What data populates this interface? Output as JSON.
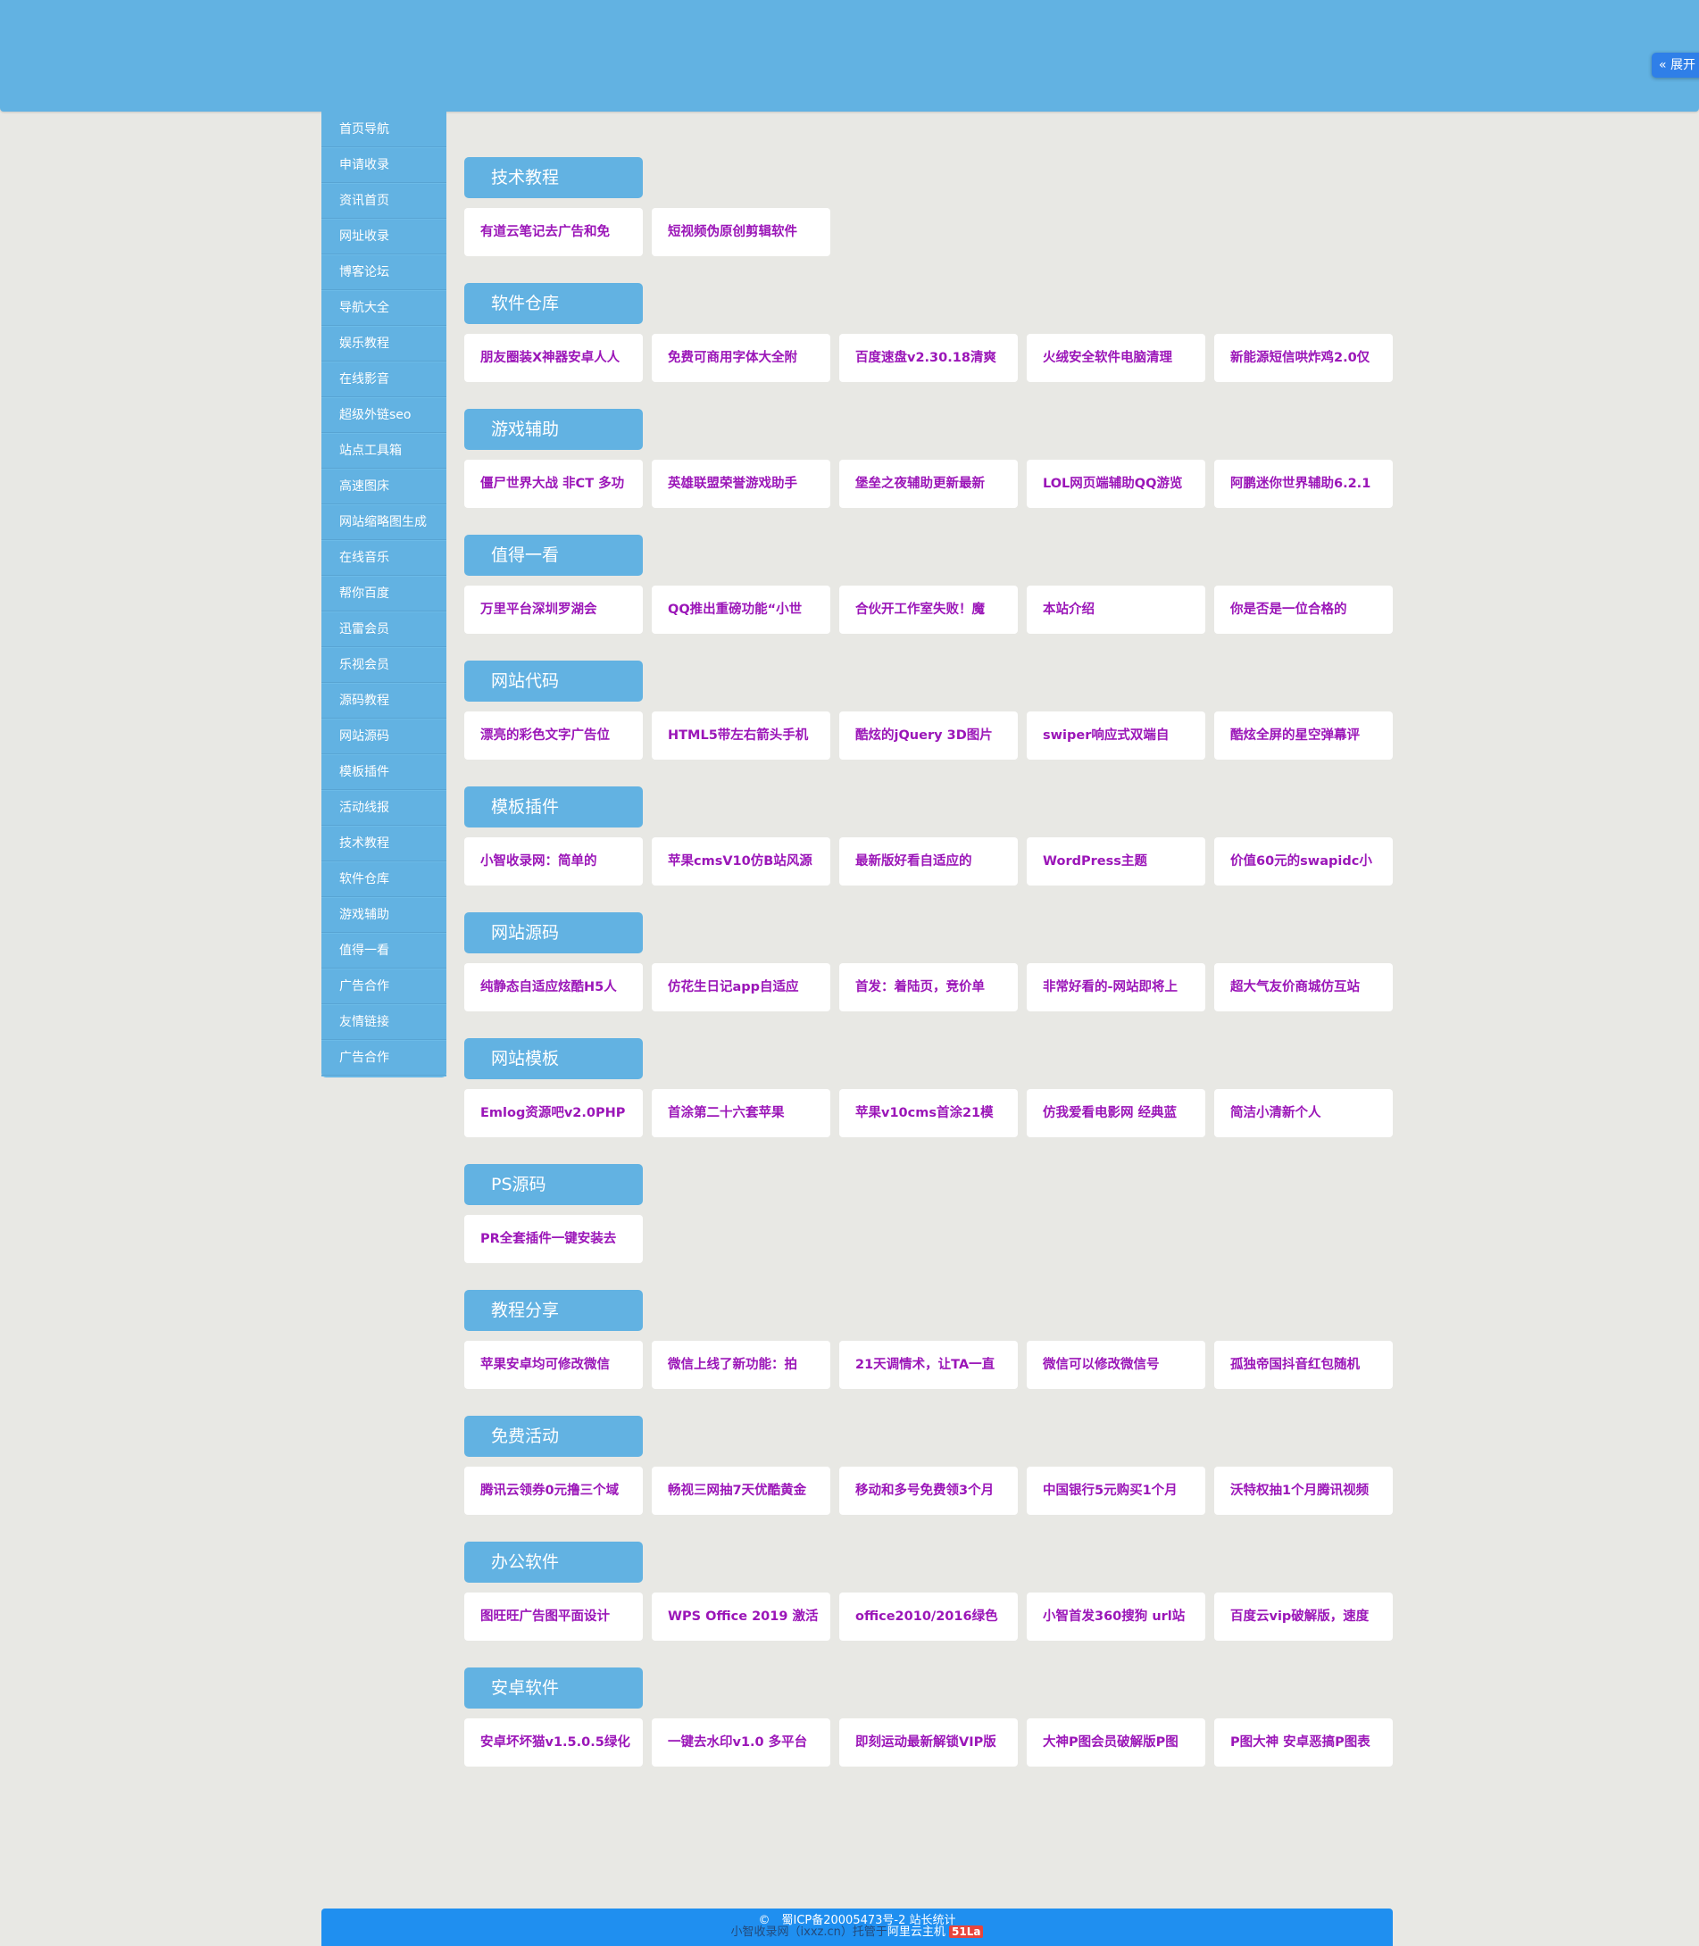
{
  "header": {
    "expand_label": "« 展开"
  },
  "sidebar": {
    "items": [
      "首页导航",
      "申请收录",
      "资讯首页",
      "网址收录",
      "博客论坛",
      "导航大全",
      "娱乐教程",
      "在线影音",
      "超级外链seo",
      "站点工具箱",
      "高速图床",
      "网站缩略图生成",
      "在线音乐",
      "帮你百度",
      "迅雷会员",
      "乐视会员",
      "源码教程",
      "网站源码",
      "模板插件",
      "活动线报",
      "技术教程",
      "软件仓库",
      "游戏辅助",
      "值得一看",
      "广告合作",
      "友情链接",
      "广告合作"
    ]
  },
  "sections": [
    {
      "title": "技术教程",
      "cards": [
        "有道云笔记去广告和免",
        "短视频伪原创剪辑软件"
      ]
    },
    {
      "title": "软件仓库",
      "cards": [
        "朋友圈装X神器安卓人人",
        "免费可商用字体大全附",
        "百度速盘v2.30.18清爽",
        "火绒安全软件电脑清理",
        "新能源短信哄炸鸡2.0仅"
      ]
    },
    {
      "title": "游戏辅助",
      "cards": [
        "僵尸世界大战 非CT 多功",
        "英雄联盟荣誉游戏助手",
        "堡垒之夜辅助更新最新",
        "LOL网页端辅助QQ游览",
        "阿鹏迷你世界辅助6.2.1"
      ]
    },
    {
      "title": "值得一看",
      "cards": [
        "万里平台深圳罗湖会",
        "QQ推出重磅功能“小世",
        "合伙开工作室失败！魔",
        "本站介绍",
        "你是否是一位合格的"
      ]
    },
    {
      "title": "网站代码",
      "cards": [
        "漂亮的彩色文字广告位",
        "HTML5带左右箭头手机",
        "酷炫的jQuery 3D图片",
        "swiper响应式双端自",
        "酷炫全屏的星空弹幕评"
      ]
    },
    {
      "title": "模板插件",
      "cards": [
        "小智收录网：简单的",
        "苹果cmsV10仿B站风源",
        "最新版好看自适应的",
        "WordPress主题",
        "价值60元的swapidc小"
      ]
    },
    {
      "title": "网站源码",
      "cards": [
        "纯静态自适应炫酷H5人",
        "仿花生日记app自适应",
        "首发：着陆页，竞价单",
        "非常好看的-网站即将上",
        "超大气友价商城仿互站"
      ]
    },
    {
      "title": "网站模板",
      "cards": [
        "Emlog资源吧v2.0PHP",
        "首涂第二十六套苹果",
        "苹果v10cms首涂21模",
        "仿我爱看电影网 经典蓝",
        "简洁小清新个人"
      ]
    },
    {
      "title": "PS源码",
      "cards": [
        "PR全套插件一键安装去"
      ]
    },
    {
      "title": "教程分享",
      "cards": [
        "苹果安卓均可修改微信",
        "微信上线了新功能：拍",
        "21天调情术，让TA一直",
        "微信可以修改微信号",
        "孤独帝国抖音红包随机"
      ]
    },
    {
      "title": "免费活动",
      "cards": [
        "腾讯云领券0元撸三个域",
        "畅视三网抽7天优酷黄金",
        "移动和多号免费领3个月",
        "中国银行5元购买1个月",
        "沃特权抽1个月腾讯视频"
      ]
    },
    {
      "title": "办公软件",
      "cards": [
        "图旺旺广告图平面设计",
        "WPS Office 2019 激活",
        "office2010/2016绿色",
        "小智首发360搜狗 url站",
        "百度云vip破解版，速度"
      ]
    },
    {
      "title": "安卓软件",
      "cards": [
        "安卓坏坏猫v1.5.0.5绿化",
        "一键去水印v1.0 多平台",
        "即刻运动最新解锁VIP版",
        "大神P图会员破解版P图",
        "P图大神 安卓恶搞P图表"
      ]
    }
  ],
  "footer": {
    "line1": "©　蜀ICP备20005473号-2 站长统计",
    "line2": "小智收录网（ixxz.cn）托管于",
    "host": "阿里云主机",
    "badge": "51La"
  },
  "colors": {
    "header": "#62b2e2",
    "card_text": "#9b16b8",
    "footer": "#1f8ff0"
  }
}
